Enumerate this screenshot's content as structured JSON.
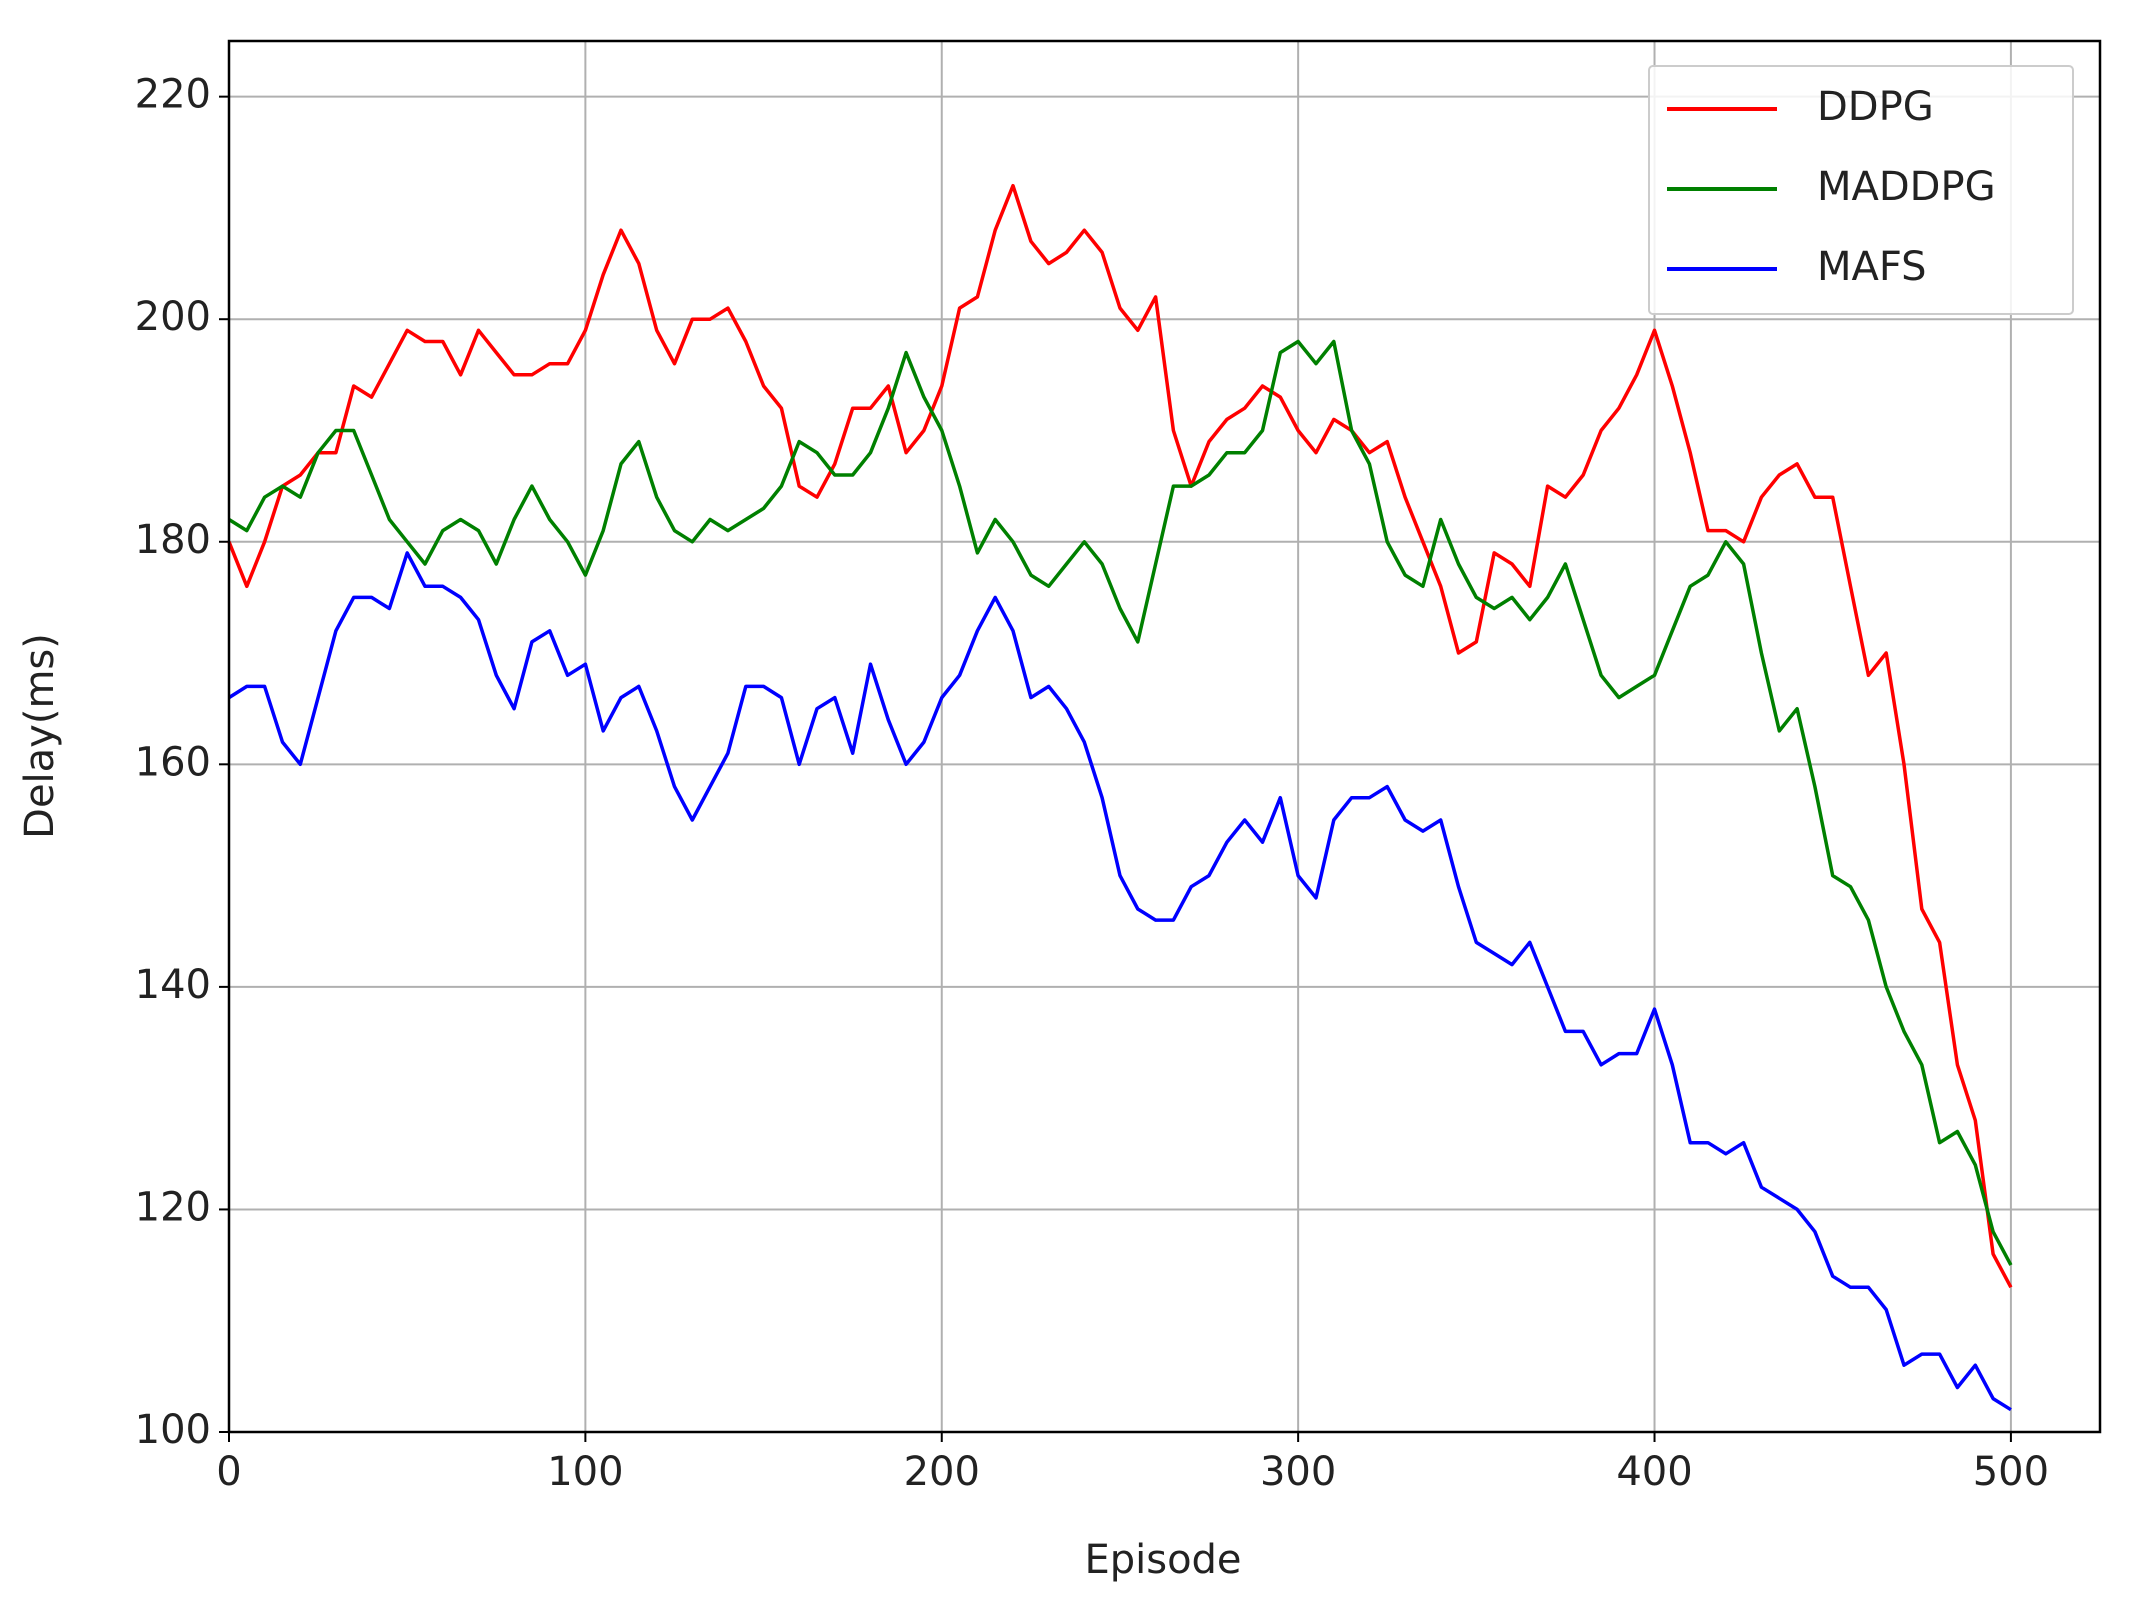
{
  "chart_data": {
    "type": "line",
    "xlabel": "Episode",
    "ylabel": "Delay(ms)",
    "x": [
      0,
      5,
      10,
      15,
      20,
      25,
      30,
      35,
      40,
      45,
      50,
      55,
      60,
      65,
      70,
      75,
      80,
      85,
      90,
      95,
      100,
      105,
      110,
      115,
      120,
      125,
      130,
      135,
      140,
      145,
      150,
      155,
      160,
      165,
      170,
      175,
      180,
      185,
      190,
      195,
      200,
      205,
      210,
      215,
      220,
      225,
      230,
      235,
      240,
      245,
      250,
      255,
      260,
      265,
      270,
      275,
      280,
      285,
      290,
      295,
      300,
      305,
      310,
      315,
      320,
      325,
      330,
      335,
      340,
      345,
      350,
      355,
      360,
      365,
      370,
      375,
      380,
      385,
      390,
      395,
      400,
      405,
      410,
      415,
      420,
      425,
      430,
      435,
      440,
      445,
      450,
      455,
      460,
      465,
      470,
      475,
      480,
      485,
      490,
      495,
      500
    ],
    "series": [
      {
        "name": "DDPG",
        "color": "#ff0000",
        "values": [
          180,
          176,
          180,
          185,
          186,
          188,
          188,
          194,
          193,
          196,
          199,
          198,
          198,
          195,
          199,
          197,
          195,
          195,
          196,
          196,
          199,
          204,
          208,
          205,
          199,
          196,
          200,
          200,
          201,
          198,
          194,
          192,
          185,
          184,
          187,
          192,
          192,
          194,
          188,
          190,
          194,
          201,
          202,
          208,
          212,
          207,
          205,
          206,
          208,
          206,
          201,
          199,
          202,
          190,
          185,
          189,
          191,
          192,
          194,
          193,
          190,
          188,
          191,
          190,
          188,
          189,
          184,
          180,
          176,
          170,
          171,
          179,
          178,
          176,
          185,
          184,
          186,
          190,
          192,
          195,
          199,
          194,
          188,
          181,
          181,
          180,
          184,
          186,
          187,
          184,
          184,
          176,
          168,
          170,
          160,
          147,
          144,
          133,
          128,
          116,
          113
        ]
      },
      {
        "name": "MADDPG",
        "color": "#008000",
        "values": [
          182,
          181,
          184,
          185,
          184,
          188,
          190,
          190,
          186,
          182,
          180,
          178,
          181,
          182,
          181,
          178,
          182,
          185,
          182,
          180,
          177,
          181,
          187,
          189,
          184,
          181,
          180,
          182,
          181,
          182,
          183,
          185,
          189,
          188,
          186,
          186,
          188,
          192,
          197,
          193,
          190,
          185,
          179,
          182,
          180,
          177,
          176,
          178,
          180,
          178,
          174,
          171,
          178,
          185,
          185,
          186,
          188,
          188,
          190,
          197,
          198,
          196,
          198,
          190,
          187,
          180,
          177,
          176,
          182,
          178,
          175,
          174,
          175,
          173,
          175,
          178,
          173,
          168,
          166,
          167,
          168,
          172,
          176,
          177,
          180,
          178,
          170,
          163,
          165,
          158,
          150,
          149,
          146,
          140,
          136,
          133,
          126,
          127,
          124,
          118,
          115
        ]
      },
      {
        "name": "MAFS",
        "color": "#0000ff",
        "values": [
          166,
          167,
          167,
          162,
          160,
          166,
          172,
          175,
          175,
          174,
          179,
          176,
          176,
          175,
          173,
          168,
          165,
          171,
          172,
          168,
          169,
          163,
          166,
          167,
          163,
          158,
          155,
          158,
          161,
          167,
          167,
          166,
          160,
          165,
          166,
          161,
          169,
          164,
          160,
          162,
          166,
          168,
          172,
          175,
          172,
          166,
          167,
          165,
          162,
          157,
          150,
          147,
          146,
          146,
          149,
          150,
          153,
          155,
          153,
          157,
          150,
          148,
          155,
          157,
          157,
          158,
          155,
          154,
          155,
          149,
          144,
          143,
          142,
          144,
          140,
          136,
          136,
          133,
          134,
          134,
          138,
          133,
          126,
          126,
          125,
          126,
          122,
          121,
          120,
          118,
          114,
          113,
          113,
          111,
          106,
          107,
          107,
          104,
          106,
          103,
          102
        ]
      }
    ],
    "xlim": [
      0,
      525
    ],
    "ylim": [
      100,
      225
    ],
    "xticks": [
      0,
      100,
      200,
      300,
      400,
      500
    ],
    "yticks": [
      100,
      120,
      140,
      160,
      180,
      200,
      220
    ],
    "grid": true,
    "legend": "upper right"
  }
}
